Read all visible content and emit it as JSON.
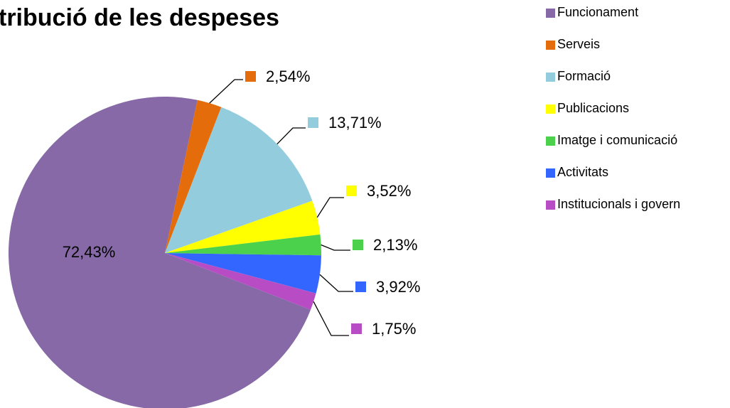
{
  "chart_data": {
    "type": "pie",
    "title": "tribució de les despeses",
    "categories": [
      "Funcionament",
      "Serveis",
      "Formació",
      "Publicacions",
      "Imatge i comunicació",
      "Activitats",
      "Institucionals i govern"
    ],
    "values": [
      72.43,
      2.54,
      13.71,
      3.52,
      2.13,
      3.92,
      1.75
    ],
    "value_labels": [
      "72,43%",
      "2,54%",
      "13,71%",
      "3,52%",
      "2,13%",
      "3,92%",
      "1,75%"
    ],
    "colors": [
      "#8669a6",
      "#e46c0a",
      "#93cddd",
      "#ffff00",
      "#4cd14c",
      "#3366ff",
      "#b84cc4"
    ],
    "legend": "right"
  }
}
